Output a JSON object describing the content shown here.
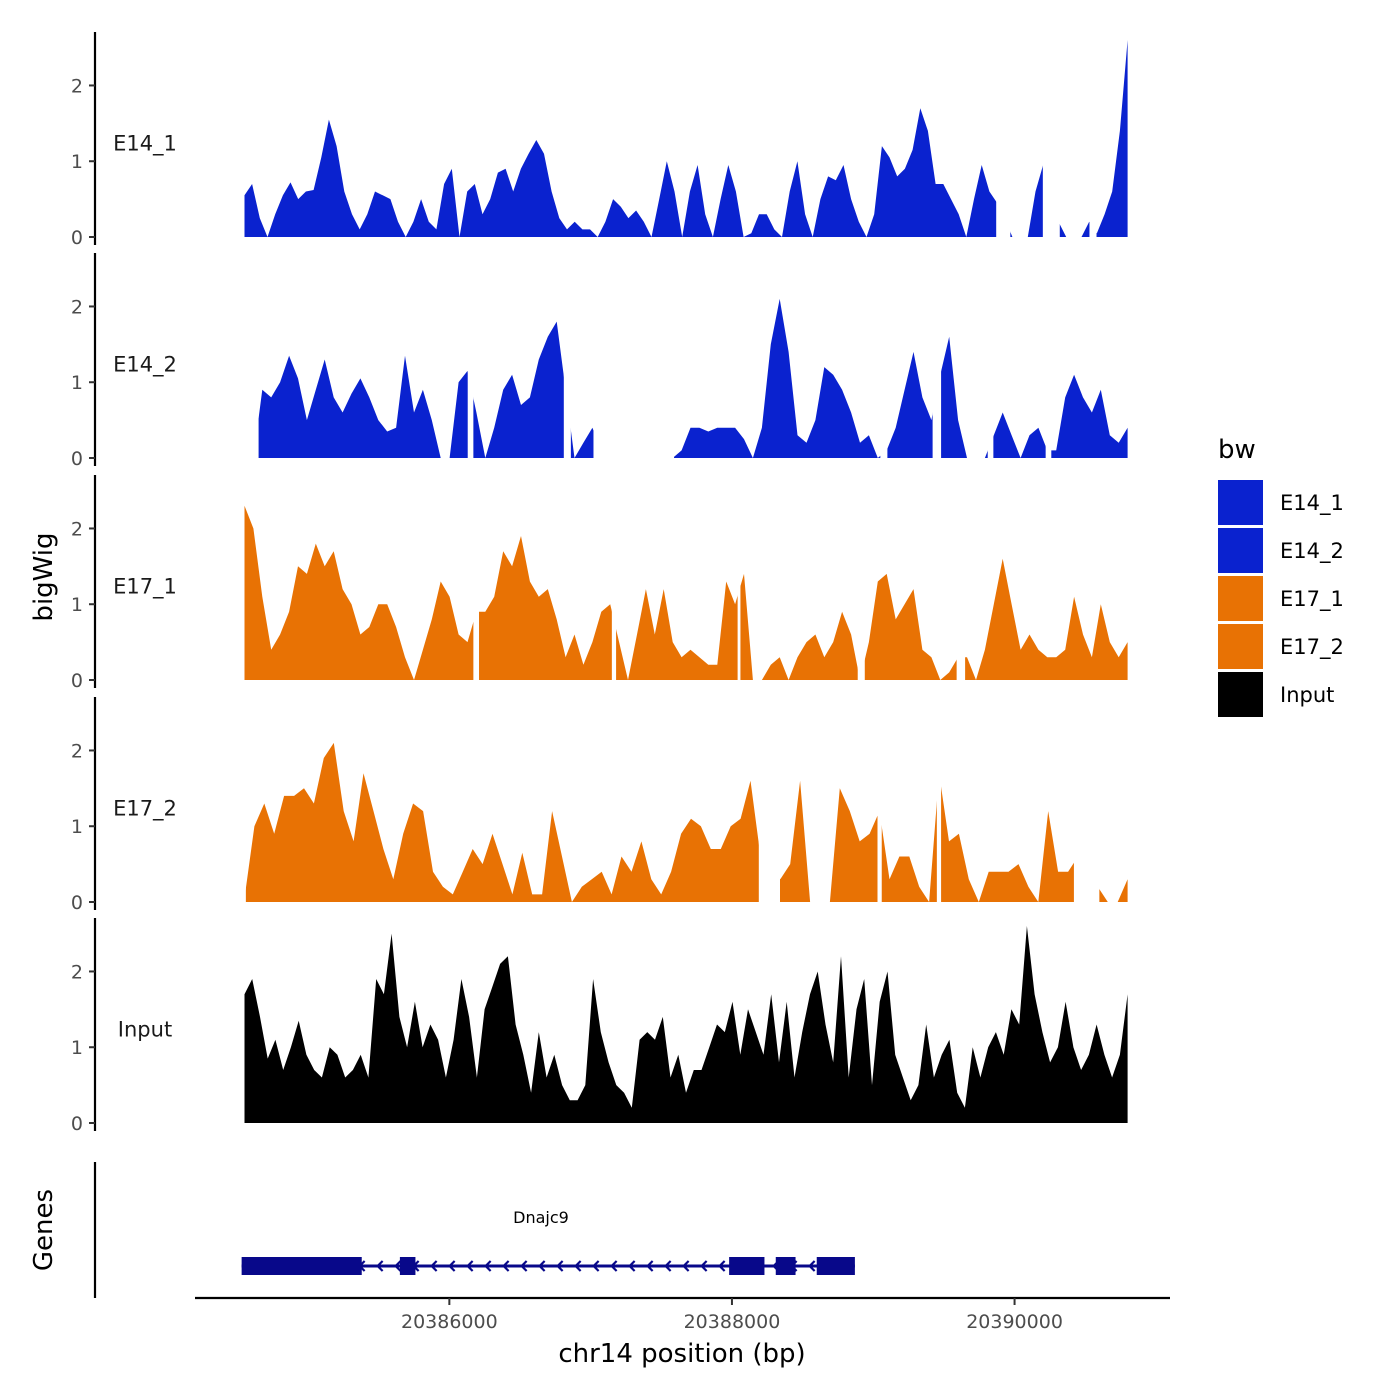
{
  "chart_data": {
    "type": "area",
    "xlabel": "chr14 position (bp)",
    "ylabel": "bigWig",
    "genes_panel_label": "Genes",
    "xlim": [
      20384200,
      20391100
    ],
    "x_ticks": [
      20386000,
      20388000,
      20390000
    ],
    "x_tick_labels": [
      "20386000",
      "20388000",
      "20390000"
    ],
    "ylim": [
      0,
      2.6
    ],
    "y_ticks": [
      0,
      1,
      2
    ],
    "y_tick_labels": [
      "0",
      "1",
      "2"
    ],
    "x_range_data": [
      20384550,
      20390800
    ],
    "legend": {
      "title": "bw",
      "position": "right",
      "entries": [
        {
          "label": "E14_1",
          "color": "#0a22cf"
        },
        {
          "label": "E14_2",
          "color": "#0a22cf"
        },
        {
          "label": "E17_1",
          "color": "#e87204"
        },
        {
          "label": "E17_2",
          "color": "#e87204"
        },
        {
          "label": "Input",
          "color": "#000000"
        }
      ]
    },
    "series": [
      {
        "name": "E14_1",
        "color": "#0a22cf",
        "values": [
          0.55,
          0.7,
          0.25,
          0,
          0.3,
          0.55,
          0.72,
          0.5,
          0.6,
          0.62,
          1.05,
          1.55,
          1.2,
          0.6,
          0.3,
          0.1,
          0.3,
          0.6,
          0.55,
          0.5,
          0.2,
          0,
          0.2,
          0.5,
          0.2,
          0.1,
          0.7,
          0.9,
          0,
          0.6,
          0.7,
          0.3,
          0.5,
          0.85,
          0.9,
          0.6,
          0.9,
          1.1,
          1.28,
          1.1,
          0.6,
          0.25,
          0.1,
          0.2,
          0.1,
          0.1,
          0,
          0.2,
          0.5,
          0.4,
          0.25,
          0.35,
          0.2,
          0,
          0.5,
          1.0,
          0.6,
          0,
          0.6,
          0.95,
          0.3,
          0,
          0.5,
          0.95,
          0.6,
          0,
          0.05,
          0.3,
          0.3,
          0.1,
          0,
          0.6,
          1.0,
          0.3,
          0,
          0.5,
          0.8,
          0.75,
          0.95,
          0.5,
          0.2,
          0,
          0.3,
          1.2,
          1.05,
          0.8,
          0.9,
          1.15,
          1.7,
          1.4,
          0.7,
          0.7,
          0.5,
          0.3,
          0,
          0.5,
          0.95,
          0.6,
          0.45,
          0.25,
          0,
          0,
          0,
          0.6,
          0.95,
          0.5,
          0.2,
          0,
          0,
          0,
          0.2,
          0.05,
          0.3,
          0.6,
          1.4,
          2.6
        ],
        "gaps": [
          [
            20389870,
            20389970
          ],
          [
            20390200,
            20390320
          ],
          [
            20390530,
            20390580
          ]
        ]
      },
      {
        "name": "E14_2",
        "color": "#0a22cf",
        "values": [
          0,
          0,
          0.9,
          0.8,
          1.0,
          1.35,
          1.05,
          0.5,
          0.9,
          1.3,
          0.8,
          0.6,
          0.85,
          1.05,
          0.8,
          0.5,
          0.35,
          0.4,
          1.35,
          0.6,
          0.9,
          0.5,
          0,
          0,
          1.0,
          1.15,
          0.6,
          0,
          0.4,
          0.9,
          1.1,
          0.7,
          0.8,
          1.3,
          1.6,
          1.8,
          0.9,
          0,
          0.2,
          0.4,
          0.1,
          0,
          0,
          0,
          0,
          0,
          0,
          0,
          0,
          0.1,
          0.4,
          0.4,
          0.35,
          0.4,
          0.4,
          0.4,
          0.25,
          0,
          0.4,
          1.5,
          2.1,
          1.4,
          0.3,
          0.2,
          0.5,
          1.2,
          1.1,
          0.9,
          0.6,
          0.2,
          0.3,
          0,
          0.1,
          0.4,
          0.9,
          1.4,
          0.8,
          0.5,
          1.1,
          1.6,
          0.5,
          0,
          0,
          0,
          0.3,
          0.6,
          0.3,
          0,
          0.3,
          0.4,
          0.1,
          0.1,
          0.8,
          1.1,
          0.8,
          0.6,
          0.9,
          0.3,
          0.2,
          0.4
        ],
        "gaps": [
          [
            20384550,
            20384650
          ],
          [
            20386130,
            20386170
          ],
          [
            20386810,
            20386860
          ],
          [
            20387020,
            20387590
          ],
          [
            20389050,
            20389100
          ],
          [
            20389420,
            20389480
          ],
          [
            20389810,
            20389850
          ],
          [
            20390220,
            20390260
          ]
        ]
      },
      {
        "name": "E17_1",
        "color": "#e87204",
        "values": [
          2.3,
          2.0,
          1.1,
          0.4,
          0.6,
          0.9,
          1.5,
          1.4,
          1.8,
          1.5,
          1.7,
          1.2,
          1.0,
          0.6,
          0.7,
          1.0,
          1.0,
          0.7,
          0.3,
          0,
          0.4,
          0.8,
          1.3,
          1.1,
          0.6,
          0.5,
          0.9,
          0.9,
          1.1,
          1.7,
          1.5,
          1.9,
          1.3,
          1.1,
          1.2,
          0.8,
          0.3,
          0.6,
          0.2,
          0.5,
          0.9,
          1.0,
          0.5,
          0,
          0.6,
          1.2,
          0.6,
          1.2,
          0.5,
          0.3,
          0.4,
          0.3,
          0.2,
          0.2,
          1.3,
          1.0,
          1.4,
          0,
          0,
          0.2,
          0.3,
          0,
          0.3,
          0.5,
          0.6,
          0.3,
          0.5,
          0.9,
          0.6,
          0,
          0.5,
          1.3,
          1.4,
          0.8,
          1.0,
          1.2,
          0.4,
          0.3,
          0,
          0.1,
          0.3,
          0.3,
          0,
          0.4,
          1.0,
          1.6,
          1.0,
          0.4,
          0.6,
          0.4,
          0.3,
          0.3,
          0.4,
          1.1,
          0.6,
          0.3,
          1.0,
          0.5,
          0.3,
          0.5
        ],
        "gaps": [
          [
            20386170,
            20386210
          ],
          [
            20387150,
            20387180
          ],
          [
            20388040,
            20388060
          ],
          [
            20388890,
            20388940
          ],
          [
            20389590,
            20389650
          ]
        ]
      },
      {
        "name": "E17_2",
        "color": "#e87204",
        "values": [
          0.05,
          1.0,
          1.3,
          0.9,
          1.4,
          1.4,
          1.5,
          1.3,
          1.9,
          2.1,
          1.2,
          0.8,
          1.7,
          1.2,
          0.7,
          0.3,
          0.9,
          1.3,
          1.2,
          0.4,
          0.2,
          0.1,
          0.4,
          0.7,
          0.5,
          0.9,
          0.5,
          0.1,
          0.65,
          0.1,
          0.1,
          1.2,
          0.6,
          0,
          0.2,
          0.3,
          0.4,
          0.1,
          0.6,
          0.4,
          0.8,
          0.3,
          0.1,
          0.4,
          0.9,
          1.1,
          1.0,
          0.7,
          0.7,
          1.0,
          1.1,
          1.6,
          0.6,
          0.6,
          0.3,
          0.5,
          1.6,
          0,
          0,
          0,
          1.5,
          1.2,
          0.8,
          0.9,
          1.2,
          0.3,
          0.6,
          0.6,
          0.2,
          0,
          1.7,
          0.8,
          0.9,
          0.3,
          0,
          0.4,
          0.4,
          0.4,
          0.5,
          0.2,
          0,
          1.2,
          0.4,
          0.4,
          0.6,
          0.5,
          0.2,
          0,
          0,
          0.3
        ],
        "gaps": [
          [
            20384550,
            20384560
          ],
          [
            20388190,
            20388340
          ],
          [
            20389030,
            20389060
          ],
          [
            20389450,
            20389480
          ],
          [
            20390420,
            20390600
          ]
        ]
      },
      {
        "name": "Input",
        "color": "#000000",
        "values": [
          1.7,
          1.9,
          1.4,
          0.85,
          1.1,
          0.7,
          1.0,
          1.35,
          0.9,
          0.7,
          0.6,
          1.0,
          0.9,
          0.6,
          0.7,
          0.9,
          0.6,
          1.9,
          1.7,
          2.5,
          1.4,
          1.0,
          1.6,
          1.0,
          1.3,
          1.1,
          0.6,
          1.1,
          1.9,
          1.4,
          0.6,
          1.5,
          1.8,
          2.1,
          2.2,
          1.3,
          0.9,
          0.4,
          1.2,
          0.6,
          0.9,
          0.5,
          0.3,
          0.3,
          0.5,
          1.9,
          1.2,
          0.8,
          0.5,
          0.4,
          0.2,
          1.1,
          1.2,
          1.1,
          1.4,
          0.6,
          0.9,
          0.4,
          0.7,
          0.7,
          1.0,
          1.3,
          1.2,
          1.6,
          0.9,
          1.5,
          1.2,
          0.9,
          1.7,
          0.8,
          1.6,
          0.6,
          1.2,
          1.7,
          2.0,
          1.3,
          0.8,
          2.2,
          0.6,
          1.5,
          1.9,
          0.5,
          1.6,
          2.0,
          0.9,
          0.6,
          0.3,
          0.5,
          1.3,
          0.6,
          0.9,
          1.1,
          0.4,
          0.2,
          1.0,
          0.6,
          1.0,
          1.2,
          0.9,
          1.5,
          1.3,
          2.6,
          1.7,
          1.2,
          0.8,
          1.0,
          1.6,
          1.0,
          0.7,
          0.9,
          1.3,
          0.9,
          0.6,
          0.9,
          1.7
        ]
      }
    ],
    "gene_track": {
      "gene_name": "Dnajc9",
      "strand": "-",
      "start": 20384530,
      "end": 20388870,
      "color": "#08088a",
      "exons": [
        [
          20384530,
          20385380
        ],
        [
          20385650,
          20385760
        ],
        [
          20387980,
          20388230
        ],
        [
          20388310,
          20388450
        ],
        [
          20388600,
          20388870
        ]
      ]
    }
  }
}
